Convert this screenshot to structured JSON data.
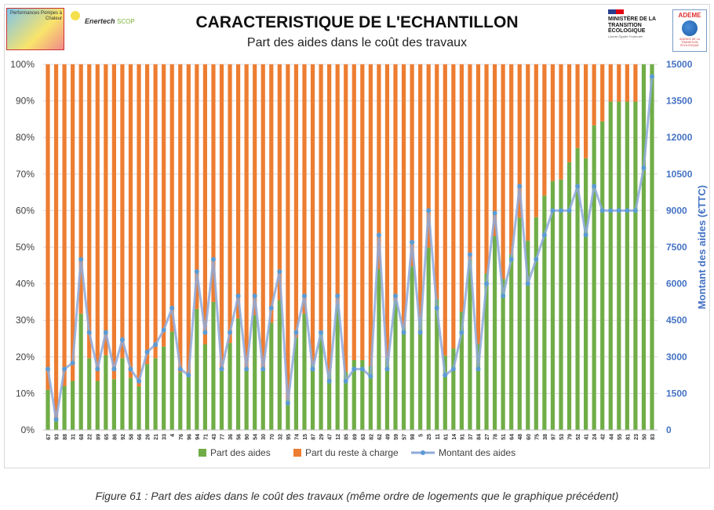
{
  "header": {
    "title": "CARACTERISTIQUE DE L'ECHANTILLON",
    "subtitle": "Part des aides dans le coût des travaux",
    "logo_left_1": "Performances Pompes à Chaleur",
    "logo_left_2_main": "Enertech",
    "logo_left_2_sub": "SCOP",
    "logo_right_1": "MINISTÈRE DE LA TRANSITION ÉCOLOGIQUE",
    "logo_right_1_motto": "Liberté Égalité Fraternité",
    "logo_right_2": "ADEME",
    "logo_right_2_sub": "AGENCE DE LA TRANSITION ÉCOLOGIQUE"
  },
  "caption": "Figure 61 : Part des aides dans le coût des travaux (même ordre de logements que le graphique précédent)",
  "colors": {
    "aides": "#70ad47",
    "reste": "#ed7d31",
    "montant": "#8faadc",
    "montant_marker": "#5b9bd5",
    "right_axis": "#4472c4"
  },
  "chart_data": {
    "type": "bar",
    "stacked": true,
    "title": "CARACTERISTIQUE DE L'ECHANTILLON",
    "subtitle": "Part des aides dans le coût des travaux",
    "xlabel": "",
    "ylabel": "",
    "y2label": "Montant des aides (€TTC)",
    "ylim": [
      0,
      100
    ],
    "y2lim": [
      0,
      15000
    ],
    "yticks": [
      "0%",
      "10%",
      "20%",
      "30%",
      "40%",
      "50%",
      "60%",
      "70%",
      "80%",
      "90%",
      "100%"
    ],
    "y2ticks": [
      "0",
      "1500",
      "3000",
      "4500",
      "6000",
      "7500",
      "9000",
      "10500",
      "12000",
      "13500",
      "15000"
    ],
    "grid": true,
    "legend": "bottom",
    "categories": [
      "67",
      "93",
      "88",
      "31",
      "68",
      "22",
      "89",
      "65",
      "86",
      "92",
      "58",
      "66",
      "26",
      "21",
      "33",
      "4",
      "76",
      "96",
      "94",
      "71",
      "43",
      "77",
      "36",
      "56",
      "90",
      "54",
      "30",
      "70",
      "32",
      "95",
      "74",
      "15",
      "87",
      "29",
      "47",
      "12",
      "85",
      "69",
      "63",
      "82",
      "62",
      "49",
      "59",
      "57",
      "98",
      "5",
      "25",
      "11",
      "61",
      "14",
      "91",
      "37",
      "84",
      "27",
      "78",
      "51",
      "64",
      "48",
      "60",
      "75",
      "38",
      "97",
      "53",
      "79",
      "52",
      "41",
      "24",
      "42",
      "44",
      "55",
      "81",
      "23",
      "50",
      "83"
    ],
    "series": [
      {
        "name": "Part des aides",
        "type": "bar",
        "axis": "left",
        "values": [
          11,
          3,
          12,
          13.4,
          31.8,
          19.6,
          13.4,
          20.4,
          13.9,
          19.6,
          14.3,
          11.9,
          18,
          19.6,
          22.8,
          26.9,
          15.8,
          15,
          33.1,
          23.4,
          35,
          16.1,
          23.8,
          30.5,
          16.5,
          31.4,
          16.5,
          29.3,
          35.5,
          8.4,
          25.3,
          31.8,
          18,
          26.4,
          15.6,
          34.3,
          15.9,
          19.1,
          19.1,
          17.5,
          44,
          19.8,
          35.3,
          28.2,
          44.8,
          30.5,
          49.9,
          35.8,
          20.3,
          22.3,
          32.3,
          46.6,
          23.5,
          42.8,
          53,
          41.3,
          48,
          58.1,
          51.8,
          58.2,
          64.1,
          68.1,
          68.5,
          73.2,
          77.1,
          74.3,
          83.3,
          84.4,
          89.8,
          89.8,
          89.8,
          89.8,
          100,
          100
        ]
      },
      {
        "name": "Part du reste à charge",
        "type": "bar",
        "axis": "left",
        "values": [
          89,
          97,
          88,
          86.6,
          68.2,
          80.4,
          86.6,
          79.6,
          86.1,
          80.4,
          85.7,
          88.1,
          82,
          80.4,
          77.2,
          73.1,
          84.2,
          85,
          66.9,
          76.6,
          65,
          83.9,
          76.2,
          69.5,
          83.5,
          68.6,
          83.5,
          70.7,
          64.5,
          91.6,
          74.7,
          68.2,
          82,
          73.6,
          84.4,
          65.7,
          84.1,
          80.9,
          80.9,
          82.5,
          56,
          80.2,
          64.7,
          71.8,
          55.2,
          69.5,
          50.1,
          64.2,
          79.7,
          77.7,
          67.7,
          53.4,
          76.5,
          57.2,
          47,
          58.7,
          52,
          41.9,
          48.2,
          41.8,
          35.9,
          31.9,
          31.5,
          26.8,
          22.9,
          25.7,
          16.7,
          15.6,
          10.2,
          10.2,
          10.2,
          10.2,
          0,
          0
        ]
      },
      {
        "name": "Montant des aides",
        "type": "line",
        "axis": "right",
        "values": [
          2500,
          430,
          2500,
          2750,
          7000,
          4000,
          2500,
          4000,
          2500,
          3700,
          2500,
          2000,
          3200,
          3500,
          4100,
          5000,
          2500,
          2250,
          6500,
          4000,
          7000,
          2500,
          4000,
          5500,
          2500,
          5500,
          2500,
          5000,
          6500,
          1100,
          4000,
          5500,
          2500,
          4000,
          2000,
          5500,
          2000,
          2500,
          2500,
          2200,
          8000,
          2500,
          5500,
          4000,
          7700,
          4000,
          9000,
          5000,
          2250,
          2500,
          4000,
          7200,
          2500,
          6000,
          8900,
          5500,
          7000,
          10000,
          6000,
          7000,
          8000,
          9000,
          9000,
          9000,
          10000,
          8000,
          10000,
          9000,
          9000,
          9000,
          9000,
          9000,
          10750,
          14500
        ]
      }
    ]
  }
}
